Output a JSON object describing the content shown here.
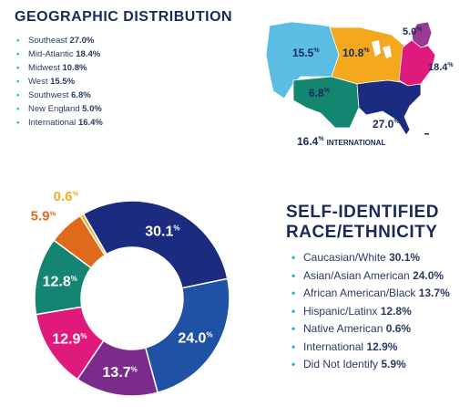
{
  "geo": {
    "title": "GEOGRAPHIC DISTRIBUTION",
    "items": [
      {
        "label": "Southeast",
        "value": "27.0%"
      },
      {
        "label": "Mid-Atlantic",
        "value": "18.4%"
      },
      {
        "label": "Midwest",
        "value": "10.8%"
      },
      {
        "label": "West",
        "value": "15.5%"
      },
      {
        "label": "Southwest",
        "value": "6.8%"
      },
      {
        "label": "New England",
        "value": "5.0%"
      },
      {
        "label": "International",
        "value": "16.4%"
      }
    ],
    "map_labels": {
      "west": {
        "num": "15.5",
        "pct": "%"
      },
      "midwest": {
        "num": "10.8",
        "pct": "%"
      },
      "new_england": {
        "num": "5.0",
        "pct": "%"
      },
      "mid_atlantic": {
        "num": "18.4",
        "pct": "%"
      },
      "southwest": {
        "num": "6.8",
        "pct": "%"
      },
      "southeast": {
        "num": "27.0",
        "pct": "%"
      },
      "international": {
        "num": "16.4",
        "pct": "%",
        "word": "INTERNATIONAL"
      }
    },
    "region_colors": {
      "west": "#5bbde4",
      "midwest": "#f3a81d",
      "new_england": "#9a3b93",
      "mid_atlantic": "#e0197d",
      "southwest": "#138671",
      "southeast": "#1a2b80"
    }
  },
  "race": {
    "title_line1": "SELF-IDENTIFIED",
    "title_line2": "RACE/ETHNICITY",
    "items": [
      {
        "label": "Caucasian/White",
        "value": "30.1%"
      },
      {
        "label": "Asian/Asian American",
        "value": "24.0%"
      },
      {
        "label": "African American/Black",
        "value": "13.7%"
      },
      {
        "label": "Hispanic/Latinx",
        "value": "12.8%"
      },
      {
        "label": "Native American",
        "value": "0.6%"
      },
      {
        "label": "International",
        "value": "12.9%"
      },
      {
        "label": "Did Not Identify",
        "value": "5.9%"
      }
    ]
  },
  "chart_data": {
    "type": "pie",
    "categories": [
      "Caucasian/White",
      "Asian/Asian American",
      "African American/Black",
      "International",
      "Hispanic/Latinx",
      "Did Not Identify",
      "Native American"
    ],
    "values": [
      30.1,
      24.0,
      13.7,
      12.9,
      12.8,
      5.9,
      0.6
    ],
    "labels": [
      "30.1",
      "24.0",
      "13.7",
      "12.9",
      "12.8",
      "5.9",
      "0.6"
    ],
    "pct_suffix": "%",
    "colors": [
      "#1a2b80",
      "#1f52a5",
      "#7b2b8c",
      "#e0197d",
      "#148573",
      "#e06a1c",
      "#f2ad26"
    ],
    "label_colors": [
      "#ffffff",
      "#ffffff",
      "#ffffff",
      "#ffffff",
      "#ffffff",
      "#e06a1c",
      "#f2ad26"
    ],
    "title": "SELF-IDENTIFIED RACE/ETHNICITY"
  }
}
